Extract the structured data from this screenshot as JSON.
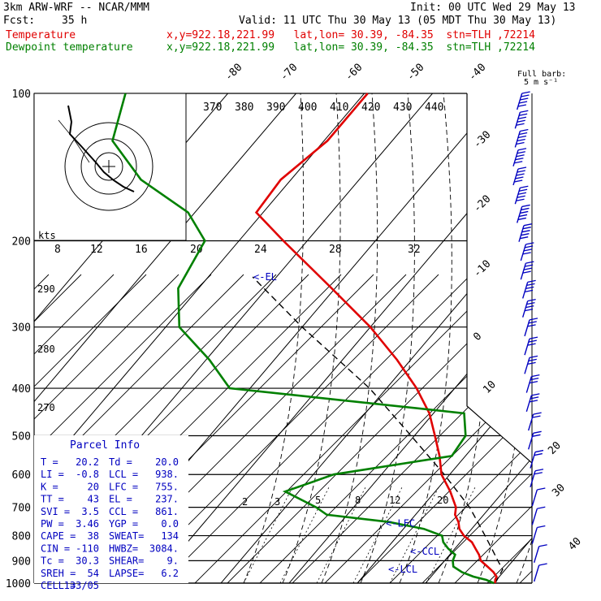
{
  "header": {
    "model": "3km ARW-WRF -- NCAR/MMM",
    "init": "Init: 00 UTC Wed 29 May 13",
    "fcst_label": "Fcst:",
    "fcst_value": "35 h",
    "valid": "Valid: 11 UTC Thu 30 May 13 (05 MDT Thu 30 May 13)",
    "temp_label": "Temperature",
    "temp_info": "x,y=922.18,221.99   lat,lon= 30.39, -84.35  stn=TLH ,72214",
    "dew_label": "Dewpoint temperature",
    "dew_info": "x,y=922.18,221.99   lat,lon= 30.39, -84.35  stn=TLH ,72214",
    "full_barb": "Full barb:",
    "barb_units": "5 m s⁻¹",
    "hodo_units": "kts",
    "colors": {
      "temperature": "#e00000",
      "dewpoint": "#008000",
      "annotation": "#0000c0"
    }
  },
  "parcel_info": {
    "title": "Parcel Info",
    "rows": [
      [
        "T  =",
        "20.2",
        "Td =",
        "20.0"
      ],
      [
        "LI =",
        "-0.8",
        "LCL =",
        "938."
      ],
      [
        "K  =",
        "20",
        "LFC =",
        "755."
      ],
      [
        "TT =",
        "43",
        "EL  =",
        "237."
      ],
      [
        "SVI =",
        "3.5",
        "CCL =",
        "861."
      ],
      [
        "PW =",
        "3.46",
        "YGP =",
        "0.0"
      ],
      [
        "CAPE =",
        "38",
        "SWEAT=",
        "134"
      ],
      [
        "CIN =",
        "-110",
        "HWBZ=",
        "3084."
      ],
      [
        "Tc =",
        "30.3",
        "SHEAR=",
        "9."
      ],
      [
        "SREH =",
        "54",
        "LAPSE=",
        "6.2"
      ],
      [
        "CELL =",
        "133/05",
        "",
        ""
      ]
    ]
  },
  "chart_data": {
    "type": "line",
    "title": "",
    "pressure_levels": [
      1000,
      900,
      800,
      700,
      600,
      500,
      400,
      300,
      200,
      100
    ],
    "pressure_tick_labels": [
      "1000",
      "900",
      "800",
      "700",
      "600",
      "500",
      "400",
      "300",
      "200",
      "100"
    ],
    "isotherm_labels": [
      "-80",
      "-70",
      "-60",
      "-50",
      "-40",
      "-30",
      "-20",
      "-10",
      "0",
      "10",
      "20",
      "30",
      "40"
    ],
    "theta_labels": [
      "370",
      "380",
      "390",
      "400",
      "410",
      "420",
      "430",
      "440"
    ],
    "hodograph_speed_labels": [
      "8",
      "12",
      "16",
      "20",
      "24",
      "28",
      "32"
    ],
    "left_theta_labels": [
      "290",
      "280",
      "270"
    ],
    "mixing_ratio_labels": [
      "2",
      "3",
      "5",
      "8",
      "12",
      "20"
    ],
    "annotations": {
      "el": "<-EL",
      "lfc": "<-LFC",
      "ccl": "<-CCL",
      "lcl": "<-LCL"
    },
    "annotation_pressures": {
      "el": 237,
      "lfc": 755,
      "ccl": 861,
      "lcl": 938
    },
    "series": [
      {
        "name": "Temperature",
        "pressure": [
          1000,
          985,
          970,
          950,
          925,
          900,
          875,
          850,
          825,
          800,
          775,
          750,
          725,
          700,
          650,
          600,
          550,
          500,
          450,
          400,
          350,
          300,
          250,
          200,
          175,
          150,
          125,
          100
        ],
        "temp": [
          20.2,
          19.8,
          19.6,
          18.6,
          17.0,
          15.3,
          14.3,
          13.0,
          11.7,
          9.7,
          8.2,
          7.2,
          5.8,
          5.0,
          2.2,
          -1.2,
          -3.8,
          -7.0,
          -10.6,
          -15.6,
          -22.0,
          -30.0,
          -40.5,
          -53.5,
          -61.0,
          -61.5,
          -59.5,
          -59.5
        ]
      },
      {
        "name": "Dewpoint temperature",
        "pressure": [
          1000,
          985,
          970,
          950,
          925,
          900,
          875,
          850,
          825,
          800,
          775,
          750,
          725,
          700,
          650,
          600,
          550,
          500,
          450,
          400,
          350,
          300,
          250,
          200,
          175,
          150,
          125,
          100
        ],
        "temp": [
          20.0,
          18.5,
          16.2,
          14.0,
          12.0,
          11.2,
          10.8,
          9.0,
          7.5,
          6.5,
          3.0,
          -3.0,
          -13.0,
          -15.5,
          -22.0,
          -17.0,
          -2.0,
          -2.5,
          -5.5,
          -43.0,
          -49.5,
          -58.0,
          -63.0,
          -65.0,
          -71.0,
          -82.0,
          -91.0,
          -95.0
        ]
      }
    ],
    "parcel_path": {
      "pressure": [
        1000,
        938,
        900,
        850,
        800,
        755,
        700,
        600,
        500,
        400,
        300,
        237
      ],
      "temp": [
        20.2,
        19.6,
        17.8,
        15.4,
        12.8,
        10.3,
        7.0,
        -0.8,
        -10.5,
        -22.5,
        -40.0,
        -53.5
      ]
    },
    "wind_barbs_kts": [
      5,
      5,
      10,
      10,
      10,
      15,
      15,
      20,
      20,
      25,
      25,
      30,
      30,
      30,
      35,
      35,
      40,
      40,
      45,
      50,
      55,
      60,
      60,
      55,
      55,
      50
    ]
  }
}
